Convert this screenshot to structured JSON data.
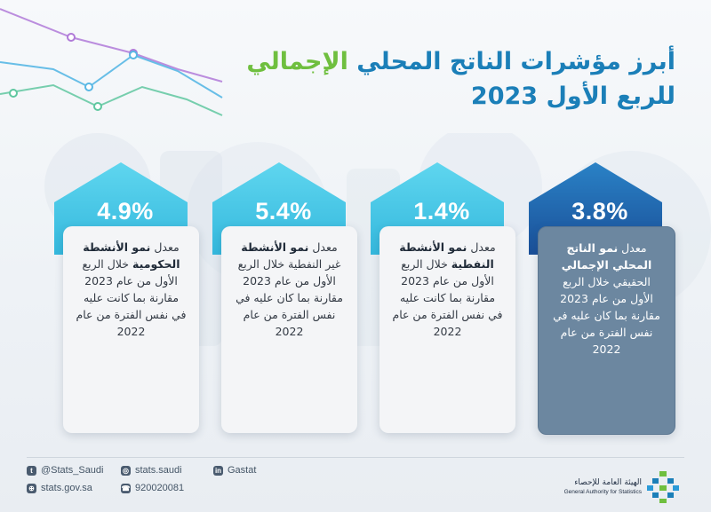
{
  "header": {
    "title_line1_part1": "أبرز مؤشرات الناتج المحلي",
    "title_line1_part2": "الإجمالي",
    "title_line2": "للربع الأول 2023"
  },
  "cards": [
    {
      "value": "3.8%",
      "prefix": "معدل",
      "bold": "نمو الناتج المحلي الإجمالي",
      "rest": "الحقيقي خلال الربع الأول من عام 2023 مقارنة بما كان عليه في نفس الفترة من عام 2022",
      "style": "dark"
    },
    {
      "value": "1.4%",
      "prefix": "معدل",
      "bold": "نمو الأنشطة النفطية",
      "rest": "خلال الربع الأول من عام 2023 مقارنة بما كانت عليه في نفس الفترة من عام 2022",
      "style": "light"
    },
    {
      "value": "5.4%",
      "prefix": "معدل",
      "bold": "نمو الأنشطة",
      "rest": "غير النفطية خلال الربع الأول من عام 2023 مقارنة بما كان عليه في نفس الفترة من عام 2022",
      "style": "light"
    },
    {
      "value": "4.9%",
      "prefix": "معدل",
      "bold": "نمو الأنشطة الحكومية",
      "rest": "خلال الربع الأول من عام 2023 مقارنة بما كانت عليه في نفس الفترة من عام 2022",
      "style": "light"
    }
  ],
  "footer": {
    "twitter": "@Stats_Saudi",
    "instagram": "stats.saudi",
    "linkedin": "Gastat",
    "website": "stats.gov.sa",
    "phone": "920020081",
    "org_ar": "الهيئة العامة للإحصاء",
    "org_en": "General Authority for Statistics"
  },
  "colors": {
    "cyan_arrow": "#49cce8",
    "dark_arrow": "#1a6fb5",
    "title_green": "#6fbf3f",
    "title_blue": "#1b7fb8",
    "dark_card": "#6c87a0"
  }
}
